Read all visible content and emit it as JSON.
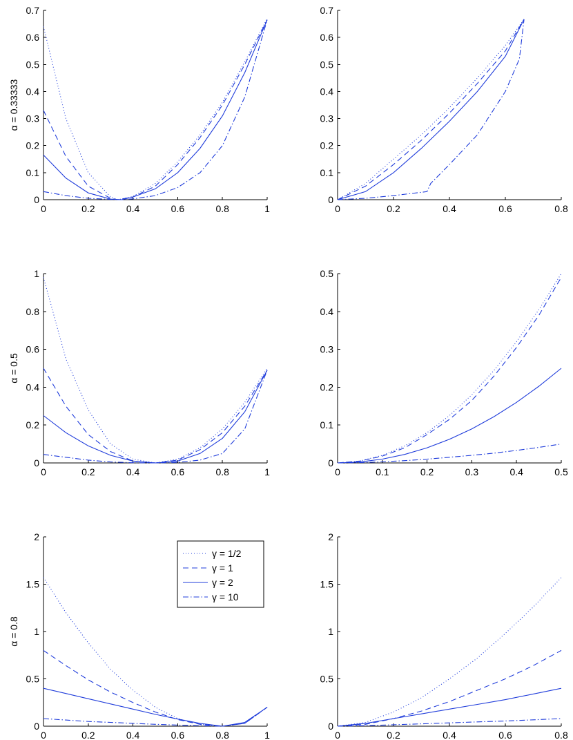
{
  "colors": {
    "series": "#1f3cdb",
    "axis": "#000000",
    "background": "#ffffff"
  },
  "chart_data": [
    {
      "type": "line",
      "row": 1,
      "col": 1,
      "ylabel": "α = 0.33333",
      "xlim": [
        0,
        1
      ],
      "ylim": [
        0,
        0.7
      ],
      "xticks": [
        "0",
        "0.2",
        "0.4",
        "0.6",
        "0.8",
        "1"
      ],
      "yticks": [
        "0",
        "0.1",
        "0.2",
        "0.3",
        "0.4",
        "0.5",
        "0.6",
        "0.7"
      ],
      "series": [
        {
          "style": "dotted",
          "x": [
            0,
            0.1,
            0.2,
            0.3,
            0.333,
            0.4,
            0.5,
            0.6,
            0.7,
            0.8,
            0.9,
            1.0
          ],
          "y": [
            0.64,
            0.3,
            0.1,
            0.01,
            0,
            0.012,
            0.06,
            0.14,
            0.24,
            0.36,
            0.51,
            0.67
          ]
        },
        {
          "style": "dashed",
          "x": [
            0,
            0.1,
            0.2,
            0.3,
            0.333,
            0.4,
            0.5,
            0.6,
            0.7,
            0.8,
            0.9,
            1.0
          ],
          "y": [
            0.33,
            0.16,
            0.05,
            0.005,
            0,
            0.01,
            0.05,
            0.13,
            0.23,
            0.35,
            0.5,
            0.665
          ]
        },
        {
          "style": "solid",
          "x": [
            0,
            0.1,
            0.2,
            0.3,
            0.35,
            0.4,
            0.5,
            0.6,
            0.7,
            0.8,
            0.9,
            1.0
          ],
          "y": [
            0.165,
            0.08,
            0.025,
            0.002,
            0,
            0.01,
            0.04,
            0.1,
            0.19,
            0.31,
            0.47,
            0.665
          ]
        },
        {
          "style": "dashdot",
          "x": [
            0,
            0.1,
            0.2,
            0.3,
            0.35,
            0.4,
            0.5,
            0.6,
            0.7,
            0.8,
            0.9,
            1.0
          ],
          "y": [
            0.03,
            0.015,
            0.005,
            0.001,
            0,
            0.003,
            0.015,
            0.045,
            0.1,
            0.2,
            0.38,
            0.665
          ]
        }
      ]
    },
    {
      "type": "line",
      "row": 1,
      "col": 2,
      "ylabel": "",
      "xlim": [
        0,
        0.8
      ],
      "ylim": [
        0,
        0.7
      ],
      "xticks": [
        "0",
        "0.2",
        "0.4",
        "0.6",
        "0.8"
      ],
      "yticks": [
        "0",
        "0.1",
        "0.2",
        "0.3",
        "0.4",
        "0.5",
        "0.6",
        "0.7"
      ],
      "series": [
        {
          "style": "dotted",
          "x": [
            0,
            0.1,
            0.2,
            0.3,
            0.4,
            0.5,
            0.6,
            0.667
          ],
          "y": [
            0,
            0.06,
            0.15,
            0.24,
            0.34,
            0.45,
            0.57,
            0.667
          ]
        },
        {
          "style": "dashed",
          "x": [
            0,
            0.1,
            0.2,
            0.3,
            0.4,
            0.5,
            0.6,
            0.667
          ],
          "y": [
            0,
            0.05,
            0.13,
            0.22,
            0.32,
            0.43,
            0.55,
            0.667
          ]
        },
        {
          "style": "solid",
          "x": [
            0,
            0.1,
            0.2,
            0.3,
            0.4,
            0.5,
            0.6,
            0.667
          ],
          "y": [
            0,
            0.03,
            0.1,
            0.19,
            0.29,
            0.4,
            0.53,
            0.667
          ]
        },
        {
          "style": "dashdot",
          "x": [
            0,
            0.1,
            0.2,
            0.32,
            0.333,
            0.4,
            0.5,
            0.6,
            0.65,
            0.667
          ],
          "y": [
            0,
            0.005,
            0.015,
            0.03,
            0.06,
            0.13,
            0.24,
            0.4,
            0.52,
            0.667
          ]
        }
      ]
    },
    {
      "type": "line",
      "row": 2,
      "col": 1,
      "ylabel": "α = 0.5",
      "xlim": [
        0,
        1
      ],
      "ylim": [
        0,
        1
      ],
      "xticks": [
        "0",
        "0.2",
        "0.4",
        "0.6",
        "0.8",
        "1"
      ],
      "yticks": [
        "0",
        "0.2",
        "0.4",
        "0.6",
        "0.8",
        "1"
      ],
      "series": [
        {
          "style": "dotted",
          "x": [
            0,
            0.1,
            0.2,
            0.3,
            0.4,
            0.5,
            0.6,
            0.7,
            0.8,
            0.9,
            1.0
          ],
          "y": [
            0.98,
            0.55,
            0.28,
            0.1,
            0.02,
            0,
            0.02,
            0.08,
            0.18,
            0.32,
            0.5
          ]
        },
        {
          "style": "dashed",
          "x": [
            0,
            0.1,
            0.2,
            0.3,
            0.4,
            0.5,
            0.6,
            0.7,
            0.8,
            0.9,
            1.0
          ],
          "y": [
            0.5,
            0.3,
            0.15,
            0.06,
            0.01,
            0,
            0.015,
            0.07,
            0.16,
            0.3,
            0.49
          ]
        },
        {
          "style": "solid",
          "x": [
            0,
            0.1,
            0.2,
            0.3,
            0.4,
            0.5,
            0.6,
            0.7,
            0.8,
            0.9,
            1.0
          ],
          "y": [
            0.25,
            0.16,
            0.09,
            0.04,
            0.01,
            0,
            0.01,
            0.05,
            0.13,
            0.27,
            0.49
          ]
        },
        {
          "style": "dashdot",
          "x": [
            0,
            0.1,
            0.2,
            0.3,
            0.4,
            0.5,
            0.6,
            0.7,
            0.8,
            0.9,
            1.0
          ],
          "y": [
            0.045,
            0.03,
            0.015,
            0.005,
            0.001,
            0,
            0.003,
            0.015,
            0.05,
            0.18,
            0.49
          ]
        }
      ]
    },
    {
      "type": "line",
      "row": 2,
      "col": 2,
      "ylabel": "",
      "xlim": [
        0,
        0.5
      ],
      "ylim": [
        0,
        0.5
      ],
      "xticks": [
        "0",
        "0.1",
        "0.2",
        "0.3",
        "0.4",
        "0.5"
      ],
      "yticks": [
        "0",
        "0.1",
        "0.2",
        "0.3",
        "0.4",
        "0.5"
      ],
      "series": [
        {
          "style": "dotted",
          "x": [
            0,
            0.05,
            0.1,
            0.15,
            0.2,
            0.25,
            0.3,
            0.35,
            0.4,
            0.45,
            0.5
          ],
          "y": [
            0,
            0.005,
            0.02,
            0.045,
            0.08,
            0.125,
            0.18,
            0.245,
            0.32,
            0.405,
            0.5
          ]
        },
        {
          "style": "dashed",
          "x": [
            0,
            0.05,
            0.1,
            0.15,
            0.2,
            0.25,
            0.3,
            0.35,
            0.4,
            0.45,
            0.5
          ],
          "y": [
            0,
            0.005,
            0.018,
            0.04,
            0.075,
            0.115,
            0.165,
            0.23,
            0.305,
            0.39,
            0.49
          ]
        },
        {
          "style": "solid",
          "x": [
            0,
            0.05,
            0.1,
            0.15,
            0.2,
            0.25,
            0.3,
            0.35,
            0.4,
            0.45,
            0.5
          ],
          "y": [
            0,
            0.0025,
            0.01,
            0.0225,
            0.04,
            0.0625,
            0.09,
            0.1225,
            0.16,
            0.2025,
            0.25
          ]
        },
        {
          "style": "dashdot",
          "x": [
            0,
            0.05,
            0.1,
            0.15,
            0.2,
            0.25,
            0.3,
            0.35,
            0.4,
            0.45,
            0.5
          ],
          "y": [
            0,
            0.001,
            0.003,
            0.006,
            0.01,
            0.015,
            0.02,
            0.026,
            0.033,
            0.041,
            0.05
          ]
        }
      ]
    },
    {
      "type": "line",
      "row": 3,
      "col": 1,
      "ylabel": "α = 0.8",
      "xlim": [
        0,
        1
      ],
      "ylim": [
        0,
        2
      ],
      "xticks": [
        "0",
        "0.2",
        "0.4",
        "0.6",
        "0.8",
        "1"
      ],
      "yticks": [
        "0",
        "0.5",
        "1",
        "1.5",
        "2"
      ],
      "series": [
        {
          "name": "γ = 1/2",
          "style": "dotted",
          "x": [
            0,
            0.1,
            0.2,
            0.3,
            0.4,
            0.5,
            0.6,
            0.7,
            0.8,
            0.9,
            1.0
          ],
          "y": [
            1.57,
            1.2,
            0.88,
            0.6,
            0.38,
            0.2,
            0.08,
            0.02,
            0,
            0.03,
            0.2
          ]
        },
        {
          "name": "γ = 1",
          "style": "dashed",
          "x": [
            0,
            0.1,
            0.2,
            0.3,
            0.4,
            0.5,
            0.6,
            0.7,
            0.8,
            0.9,
            1.0
          ],
          "y": [
            0.8,
            0.64,
            0.49,
            0.36,
            0.25,
            0.15,
            0.07,
            0.02,
            0,
            0.03,
            0.2
          ]
        },
        {
          "name": "γ = 2",
          "style": "solid",
          "x": [
            0,
            0.1,
            0.2,
            0.3,
            0.4,
            0.5,
            0.6,
            0.7,
            0.8,
            0.9,
            1.0
          ],
          "y": [
            0.4,
            0.345,
            0.29,
            0.235,
            0.18,
            0.125,
            0.075,
            0.03,
            0,
            0.04,
            0.2
          ]
        },
        {
          "name": "γ = 10",
          "style": "dashdot",
          "x": [
            0,
            0.1,
            0.2,
            0.3,
            0.4,
            0.5,
            0.6,
            0.7,
            0.8,
            0.9,
            1.0
          ],
          "y": [
            0.08,
            0.065,
            0.05,
            0.04,
            0.03,
            0.02,
            0.012,
            0.005,
            0,
            0.03,
            0.2
          ]
        }
      ]
    },
    {
      "type": "line",
      "row": 3,
      "col": 2,
      "ylabel": "",
      "xlim": [
        0,
        0.8
      ],
      "ylim": [
        0,
        2
      ],
      "xticks": [
        "0",
        "0.2",
        "0.4",
        "0.6",
        "0.8"
      ],
      "yticks": [
        "0",
        "0.5",
        "1",
        "1.5",
        "2"
      ],
      "series": [
        {
          "style": "dotted",
          "x": [
            0,
            0.1,
            0.2,
            0.3,
            0.4,
            0.5,
            0.6,
            0.7,
            0.8
          ],
          "y": [
            0,
            0.04,
            0.15,
            0.3,
            0.5,
            0.72,
            0.98,
            1.26,
            1.57
          ]
        },
        {
          "style": "dashed",
          "x": [
            0,
            0.1,
            0.2,
            0.3,
            0.4,
            0.5,
            0.6,
            0.7,
            0.8
          ],
          "y": [
            0,
            0.02,
            0.08,
            0.16,
            0.26,
            0.38,
            0.5,
            0.64,
            0.8
          ]
        },
        {
          "style": "solid",
          "x": [
            0,
            0.1,
            0.2,
            0.3,
            0.4,
            0.5,
            0.6,
            0.7,
            0.8
          ],
          "y": [
            0,
            0.03,
            0.08,
            0.13,
            0.18,
            0.23,
            0.28,
            0.34,
            0.4
          ]
        },
        {
          "style": "dashdot",
          "x": [
            0,
            0.1,
            0.2,
            0.3,
            0.4,
            0.5,
            0.6,
            0.7,
            0.8
          ],
          "y": [
            0,
            0.005,
            0.015,
            0.025,
            0.035,
            0.045,
            0.055,
            0.067,
            0.08
          ]
        }
      ]
    }
  ],
  "legend": {
    "entries": [
      {
        "label": "γ = 1/2",
        "style": "dotted"
      },
      {
        "label": "γ = 1",
        "style": "dashed"
      },
      {
        "label": "γ = 2",
        "style": "solid"
      },
      {
        "label": "γ = 10",
        "style": "dashdot"
      }
    ]
  }
}
